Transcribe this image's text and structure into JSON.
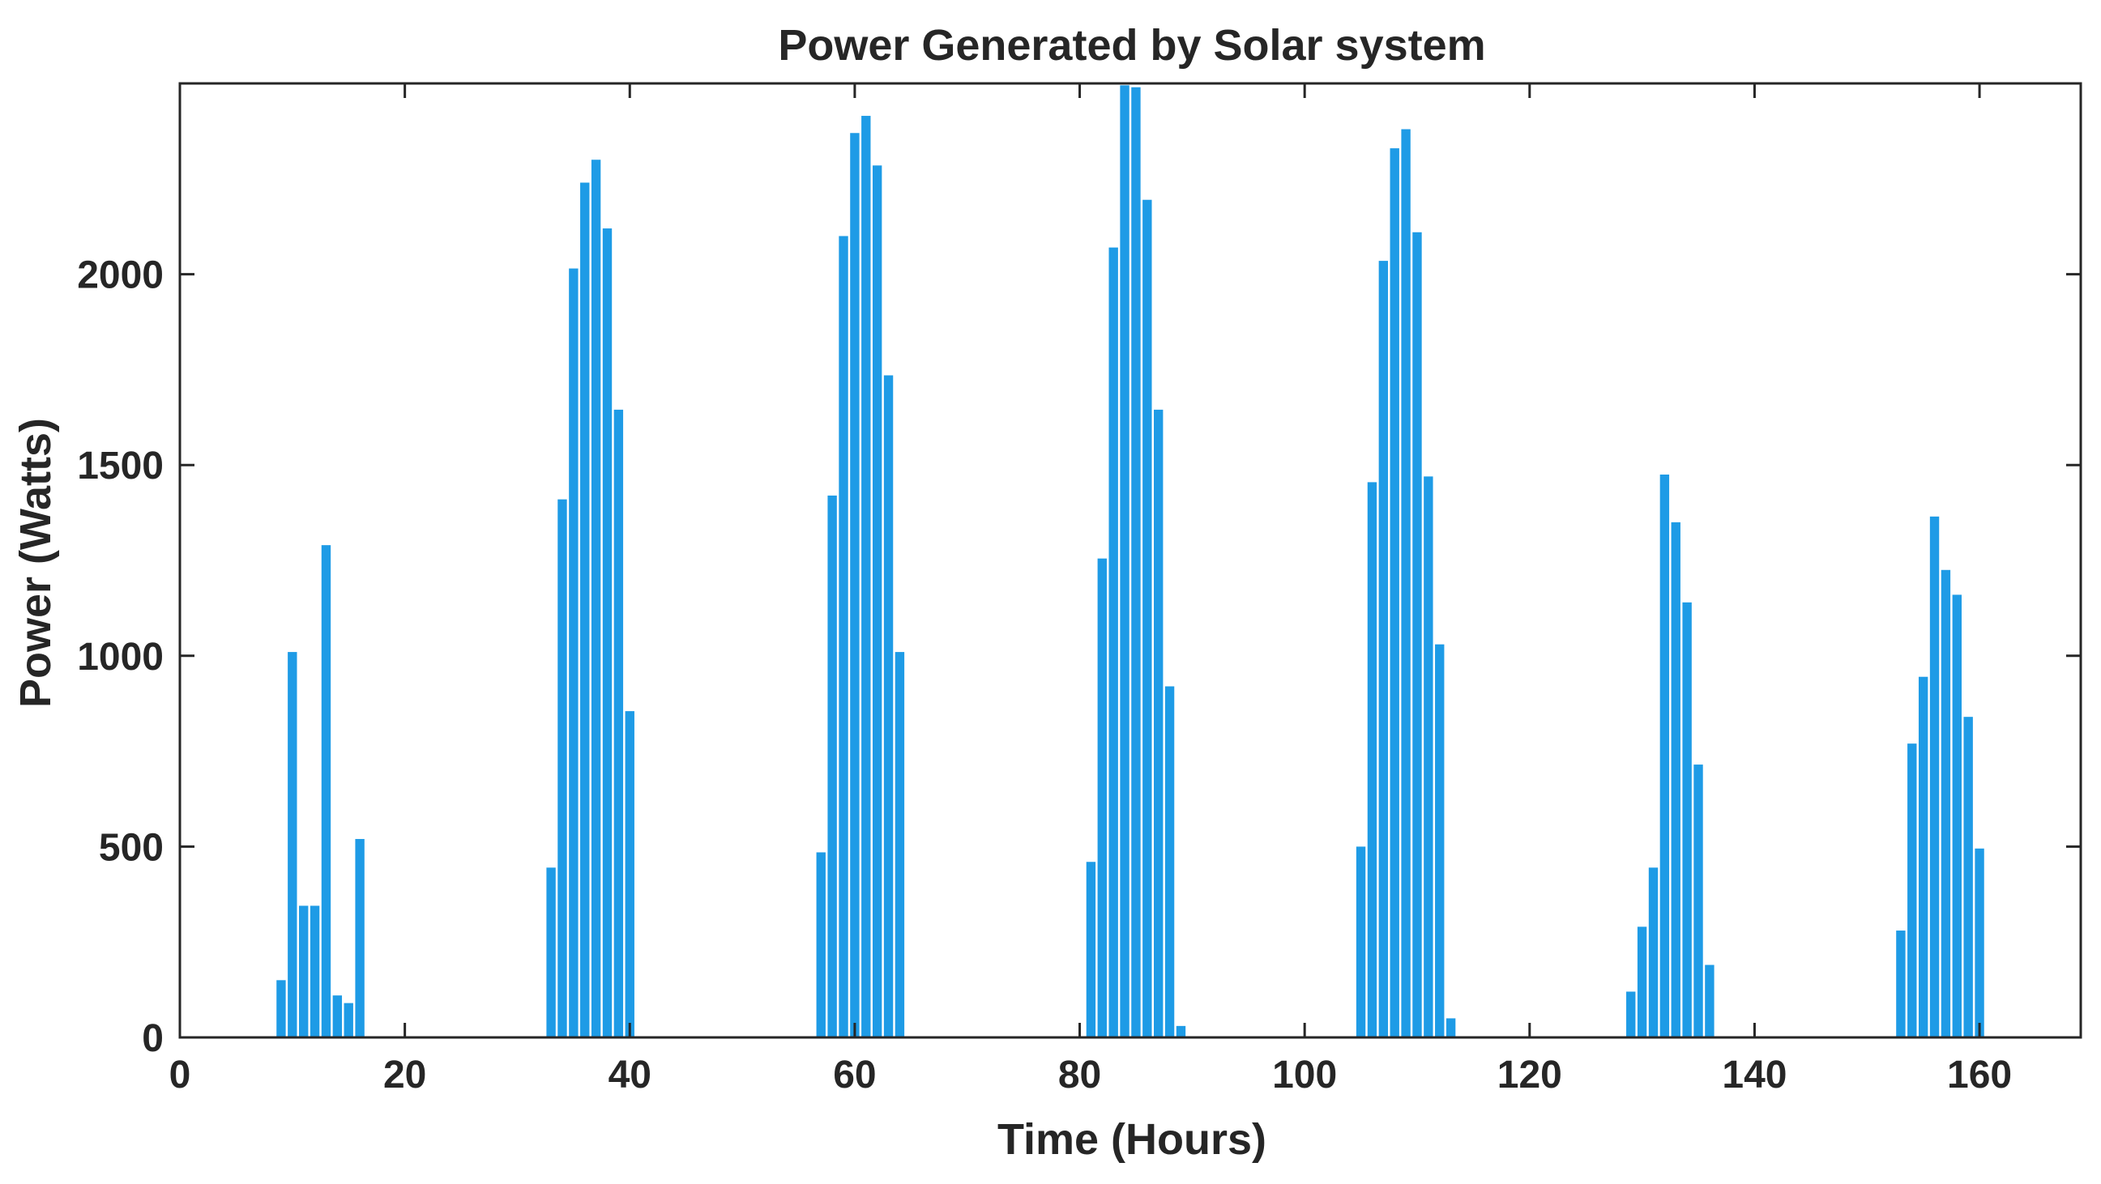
{
  "chart_data": {
    "type": "bar",
    "title": "Power Generated by Solar system",
    "xlabel": "Time (Hours)",
    "ylabel": "Power (Watts)",
    "xlim": [
      0,
      169
    ],
    "ylim": [
      0,
      2500
    ],
    "xticks": [
      0,
      20,
      40,
      60,
      80,
      100,
      120,
      140,
      160
    ],
    "yticks": [
      0,
      500,
      1000,
      1500,
      2000
    ],
    "grid": false,
    "bar_color": "#1e9be6",
    "series": [
      {
        "name": "Power",
        "x": [
          9,
          10,
          11,
          12,
          13,
          14,
          15,
          16,
          33,
          34,
          35,
          36,
          37,
          38,
          39,
          40,
          57,
          58,
          59,
          60,
          61,
          62,
          63,
          64,
          81,
          82,
          83,
          84,
          85,
          86,
          87,
          88,
          89,
          105,
          106,
          107,
          108,
          109,
          110,
          111,
          112,
          113,
          129,
          130,
          131,
          132,
          133,
          134,
          135,
          136,
          153,
          154,
          155,
          156,
          157,
          158,
          159,
          160
        ],
        "values": [
          150,
          1010,
          345,
          345,
          1290,
          110,
          90,
          520,
          445,
          1410,
          2015,
          2240,
          2300,
          2120,
          1645,
          855,
          485,
          1420,
          2100,
          2370,
          2415,
          2285,
          1735,
          1010,
          460,
          1255,
          2070,
          2495,
          2490,
          2195,
          1645,
          920,
          30,
          500,
          1455,
          2035,
          2330,
          2380,
          2110,
          1470,
          1030,
          50,
          120,
          290,
          445,
          1475,
          1350,
          1140,
          715,
          190,
          280,
          770,
          945,
          1365,
          1225,
          1160,
          840,
          495
        ]
      }
    ]
  }
}
